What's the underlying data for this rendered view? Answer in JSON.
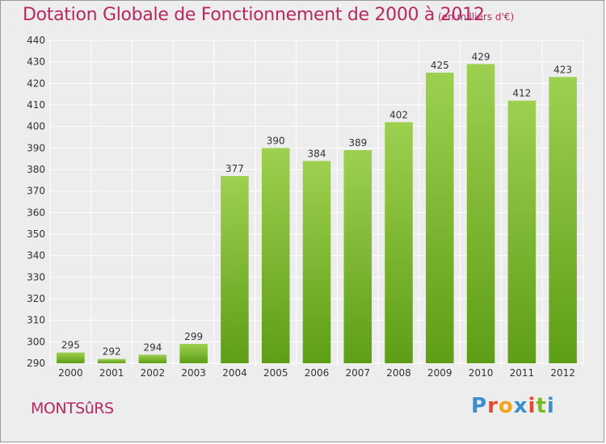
{
  "header": {
    "title": "Dotation Globale de Fonctionnement de 2000 à 2012",
    "subtitle": "(en milliers d'€)"
  },
  "footer": {
    "commune": "MONTSûRS",
    "logo_letters": [
      "P",
      "r",
      "o",
      "x",
      "i",
      "t",
      "i"
    ],
    "logo_colors": [
      "#3a8fd1",
      "#e8462e",
      "#f2a41c",
      "#3a8fd1",
      "#e8462e",
      "#78b828",
      "#3a8fd1"
    ]
  },
  "colors": {
    "bar_light": "#9ed050",
    "bar_dark": "#5e9e16",
    "grid": "#ffffff",
    "background": "#ededed",
    "title": "#b8285e"
  },
  "chart_data": {
    "type": "bar",
    "categories": [
      "2000",
      "2001",
      "2002",
      "2003",
      "2004",
      "2005",
      "2006",
      "2007",
      "2008",
      "2009",
      "2010",
      "2011",
      "2012"
    ],
    "values": [
      295,
      292,
      294,
      299,
      377,
      390,
      384,
      389,
      402,
      425,
      429,
      412,
      423
    ],
    "ylim": [
      290,
      440
    ],
    "yticks": [
      290,
      300,
      310,
      320,
      330,
      340,
      350,
      360,
      370,
      380,
      390,
      400,
      410,
      420,
      430,
      440
    ],
    "grid": true
  }
}
